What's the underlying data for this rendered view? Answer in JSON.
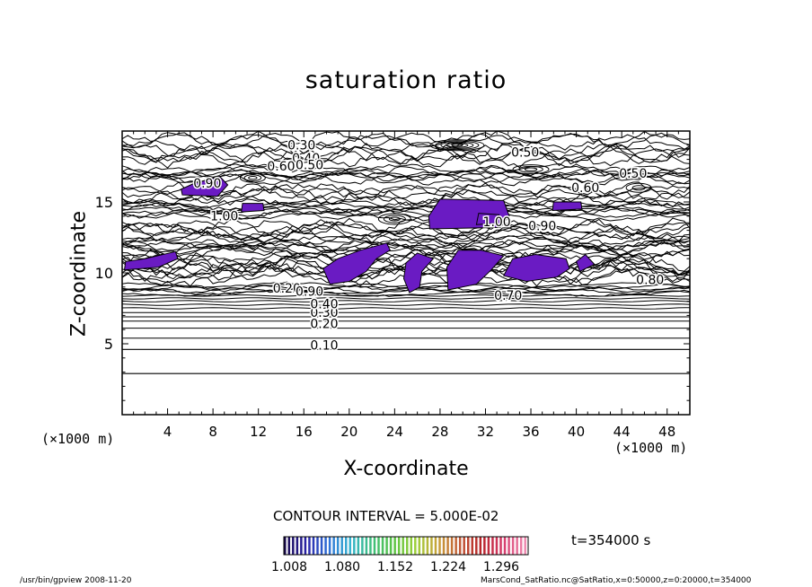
{
  "chart_data": {
    "type": "heatmap",
    "title": "saturation ratio",
    "xlabel": "X-coordinate",
    "ylabel": "Z-coordinate",
    "x_unit": "(×1000 m)",
    "y_unit": "(×1000 m)",
    "xlim": [
      0,
      50
    ],
    "ylim": [
      0,
      20
    ],
    "x_ticks": [
      "4",
      "8",
      "12",
      "16",
      "20",
      "24",
      "28",
      "32",
      "36",
      "40",
      "44",
      "48"
    ],
    "y_ticks": [
      "5",
      "10",
      "15"
    ],
    "contour_interval_label": "CONTOUR INTERVAL = 5.000E-02",
    "time_label": "t=354000 s",
    "contour_labels": [
      {
        "text": "0.10",
        "x": 17.8,
        "z": 4.6
      },
      {
        "text": "0.20",
        "x": 17.8,
        "z": 6.1
      },
      {
        "text": "0.30",
        "x": 17.8,
        "z": 6.9
      },
      {
        "text": "0.40",
        "x": 17.8,
        "z": 7.5
      },
      {
        "text": "0.20",
        "x": 14.5,
        "z": 8.6
      },
      {
        "text": "0.30",
        "x": 15.8,
        "z": 18.7
      },
      {
        "text": "0.40",
        "x": 16.2,
        "z": 17.8
      },
      {
        "text": "0.60",
        "x": 14.0,
        "z": 17.2
      },
      {
        "text": "0.50",
        "x": 16.5,
        "z": 17.3
      },
      {
        "text": "0.50",
        "x": 35.5,
        "z": 18.2
      },
      {
        "text": "0.60",
        "x": 40.8,
        "z": 15.7
      },
      {
        "text": "0.50",
        "x": 45.0,
        "z": 16.7
      },
      {
        "text": "0.90",
        "x": 7.5,
        "z": 16.0
      },
      {
        "text": "0.90",
        "x": 37.0,
        "z": 13.0
      },
      {
        "text": "1.00",
        "x": 33.0,
        "z": 13.3
      },
      {
        "text": "0.70",
        "x": 34.0,
        "z": 8.1
      },
      {
        "text": "0.80",
        "x": 46.5,
        "z": 9.2
      },
      {
        "text": "0.90",
        "x": 16.5,
        "z": 8.4
      },
      {
        "text": "1.00",
        "x": 9.0,
        "z": 13.7
      }
    ],
    "supersaturated_regions_note": "values above 1.008 shown in color",
    "colorbar": {
      "min": 1.008,
      "max": 1.296,
      "tick_labels": [
        "1.008",
        "1.080",
        "1.152",
        "1.224",
        "1.296"
      ],
      "colors": [
        "#1a0b4e",
        "#2a23a8",
        "#2f72d8",
        "#36b4d0",
        "#3fbf7a",
        "#5cc444",
        "#9ed03a",
        "#c9a23a",
        "#c25a36",
        "#b8242a",
        "#d63c6c",
        "#ee8ab0"
      ]
    },
    "fill_color": "#6a1bc3"
  },
  "footer": {
    "left": "/usr/bin/gpview   2008-11-20",
    "right": "MarsCond_SatRatio.nc@SatRatio,x=0:50000,z=0:20000,t=354000"
  }
}
